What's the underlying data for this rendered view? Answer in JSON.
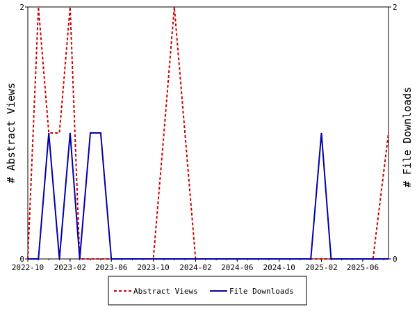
{
  "chart_data": {
    "type": "line",
    "title": "",
    "x_ticks": [
      "2022-10",
      "2023-02",
      "2023-06",
      "2023-10",
      "2024-02",
      "2024-06",
      "2024-10",
      "2025-02",
      "2025-06"
    ],
    "x_range": [
      "2022-10-01",
      "2025-08-15"
    ],
    "y_left": {
      "label": "# Abstract Views",
      "range": [
        0,
        2
      ],
      "ticks": [
        "0",
        "2"
      ]
    },
    "y_right": {
      "label": "# File Downloads",
      "range": [
        0,
        2
      ],
      "ticks": [
        "0",
        "2"
      ]
    },
    "grid": false,
    "legend_position": "bottom",
    "series": [
      {
        "name": "Abstract Views",
        "axis": "left",
        "color": "#cc0000",
        "style": "dashed",
        "points": [
          [
            "2022-10-01",
            0
          ],
          [
            "2022-11-01",
            2
          ],
          [
            "2022-12-01",
            1
          ],
          [
            "2023-01-01",
            1
          ],
          [
            "2023-02-01",
            2
          ],
          [
            "2023-03-01",
            0
          ],
          [
            "2023-04-01",
            0
          ],
          [
            "2023-05-01",
            0
          ],
          [
            "2023-06-01",
            0
          ],
          [
            "2023-07-01",
            0
          ],
          [
            "2023-08-01",
            0
          ],
          [
            "2023-09-01",
            0
          ],
          [
            "2023-10-01",
            0
          ],
          [
            "2023-11-01",
            1
          ],
          [
            "2023-12-01",
            2
          ],
          [
            "2024-01-01",
            1
          ],
          [
            "2024-02-01",
            0
          ],
          [
            "2024-03-01",
            0
          ],
          [
            "2024-04-01",
            0
          ],
          [
            "2024-05-01",
            0
          ],
          [
            "2024-06-01",
            0
          ],
          [
            "2024-07-01",
            0
          ],
          [
            "2024-08-01",
            0
          ],
          [
            "2024-09-01",
            0
          ],
          [
            "2024-10-01",
            0
          ],
          [
            "2024-11-01",
            0
          ],
          [
            "2024-12-01",
            0
          ],
          [
            "2025-01-01",
            0
          ],
          [
            "2025-02-01",
            0
          ],
          [
            "2025-03-01",
            0
          ],
          [
            "2025-04-01",
            0
          ],
          [
            "2025-05-01",
            0
          ],
          [
            "2025-06-01",
            0
          ],
          [
            "2025-07-01",
            0
          ],
          [
            "2025-08-15",
            1
          ]
        ]
      },
      {
        "name": "File Downloads",
        "axis": "right",
        "color": "#0000aa",
        "style": "solid",
        "points": [
          [
            "2022-10-01",
            0
          ],
          [
            "2022-11-01",
            0
          ],
          [
            "2022-12-01",
            1
          ],
          [
            "2023-01-01",
            0
          ],
          [
            "2023-02-01",
            1
          ],
          [
            "2023-03-01",
            0
          ],
          [
            "2023-04-01",
            1
          ],
          [
            "2023-05-01",
            1
          ],
          [
            "2023-06-01",
            0
          ],
          [
            "2023-07-01",
            0
          ],
          [
            "2023-08-01",
            0
          ],
          [
            "2023-09-01",
            0
          ],
          [
            "2023-10-01",
            0
          ],
          [
            "2023-11-01",
            0
          ],
          [
            "2023-12-01",
            0
          ],
          [
            "2024-01-01",
            0
          ],
          [
            "2024-02-01",
            0
          ],
          [
            "2024-03-01",
            0
          ],
          [
            "2024-04-01",
            0
          ],
          [
            "2024-05-01",
            0
          ],
          [
            "2024-06-01",
            0
          ],
          [
            "2024-07-01",
            0
          ],
          [
            "2024-08-01",
            0
          ],
          [
            "2024-09-01",
            0
          ],
          [
            "2024-10-01",
            0
          ],
          [
            "2024-11-01",
            0
          ],
          [
            "2024-12-01",
            0
          ],
          [
            "2025-01-01",
            0
          ],
          [
            "2025-02-01",
            1
          ],
          [
            "2025-03-01",
            0
          ],
          [
            "2025-04-01",
            0
          ],
          [
            "2025-05-01",
            0
          ],
          [
            "2025-06-01",
            0
          ],
          [
            "2025-07-01",
            0
          ],
          [
            "2025-08-15",
            0
          ]
        ]
      }
    ]
  }
}
